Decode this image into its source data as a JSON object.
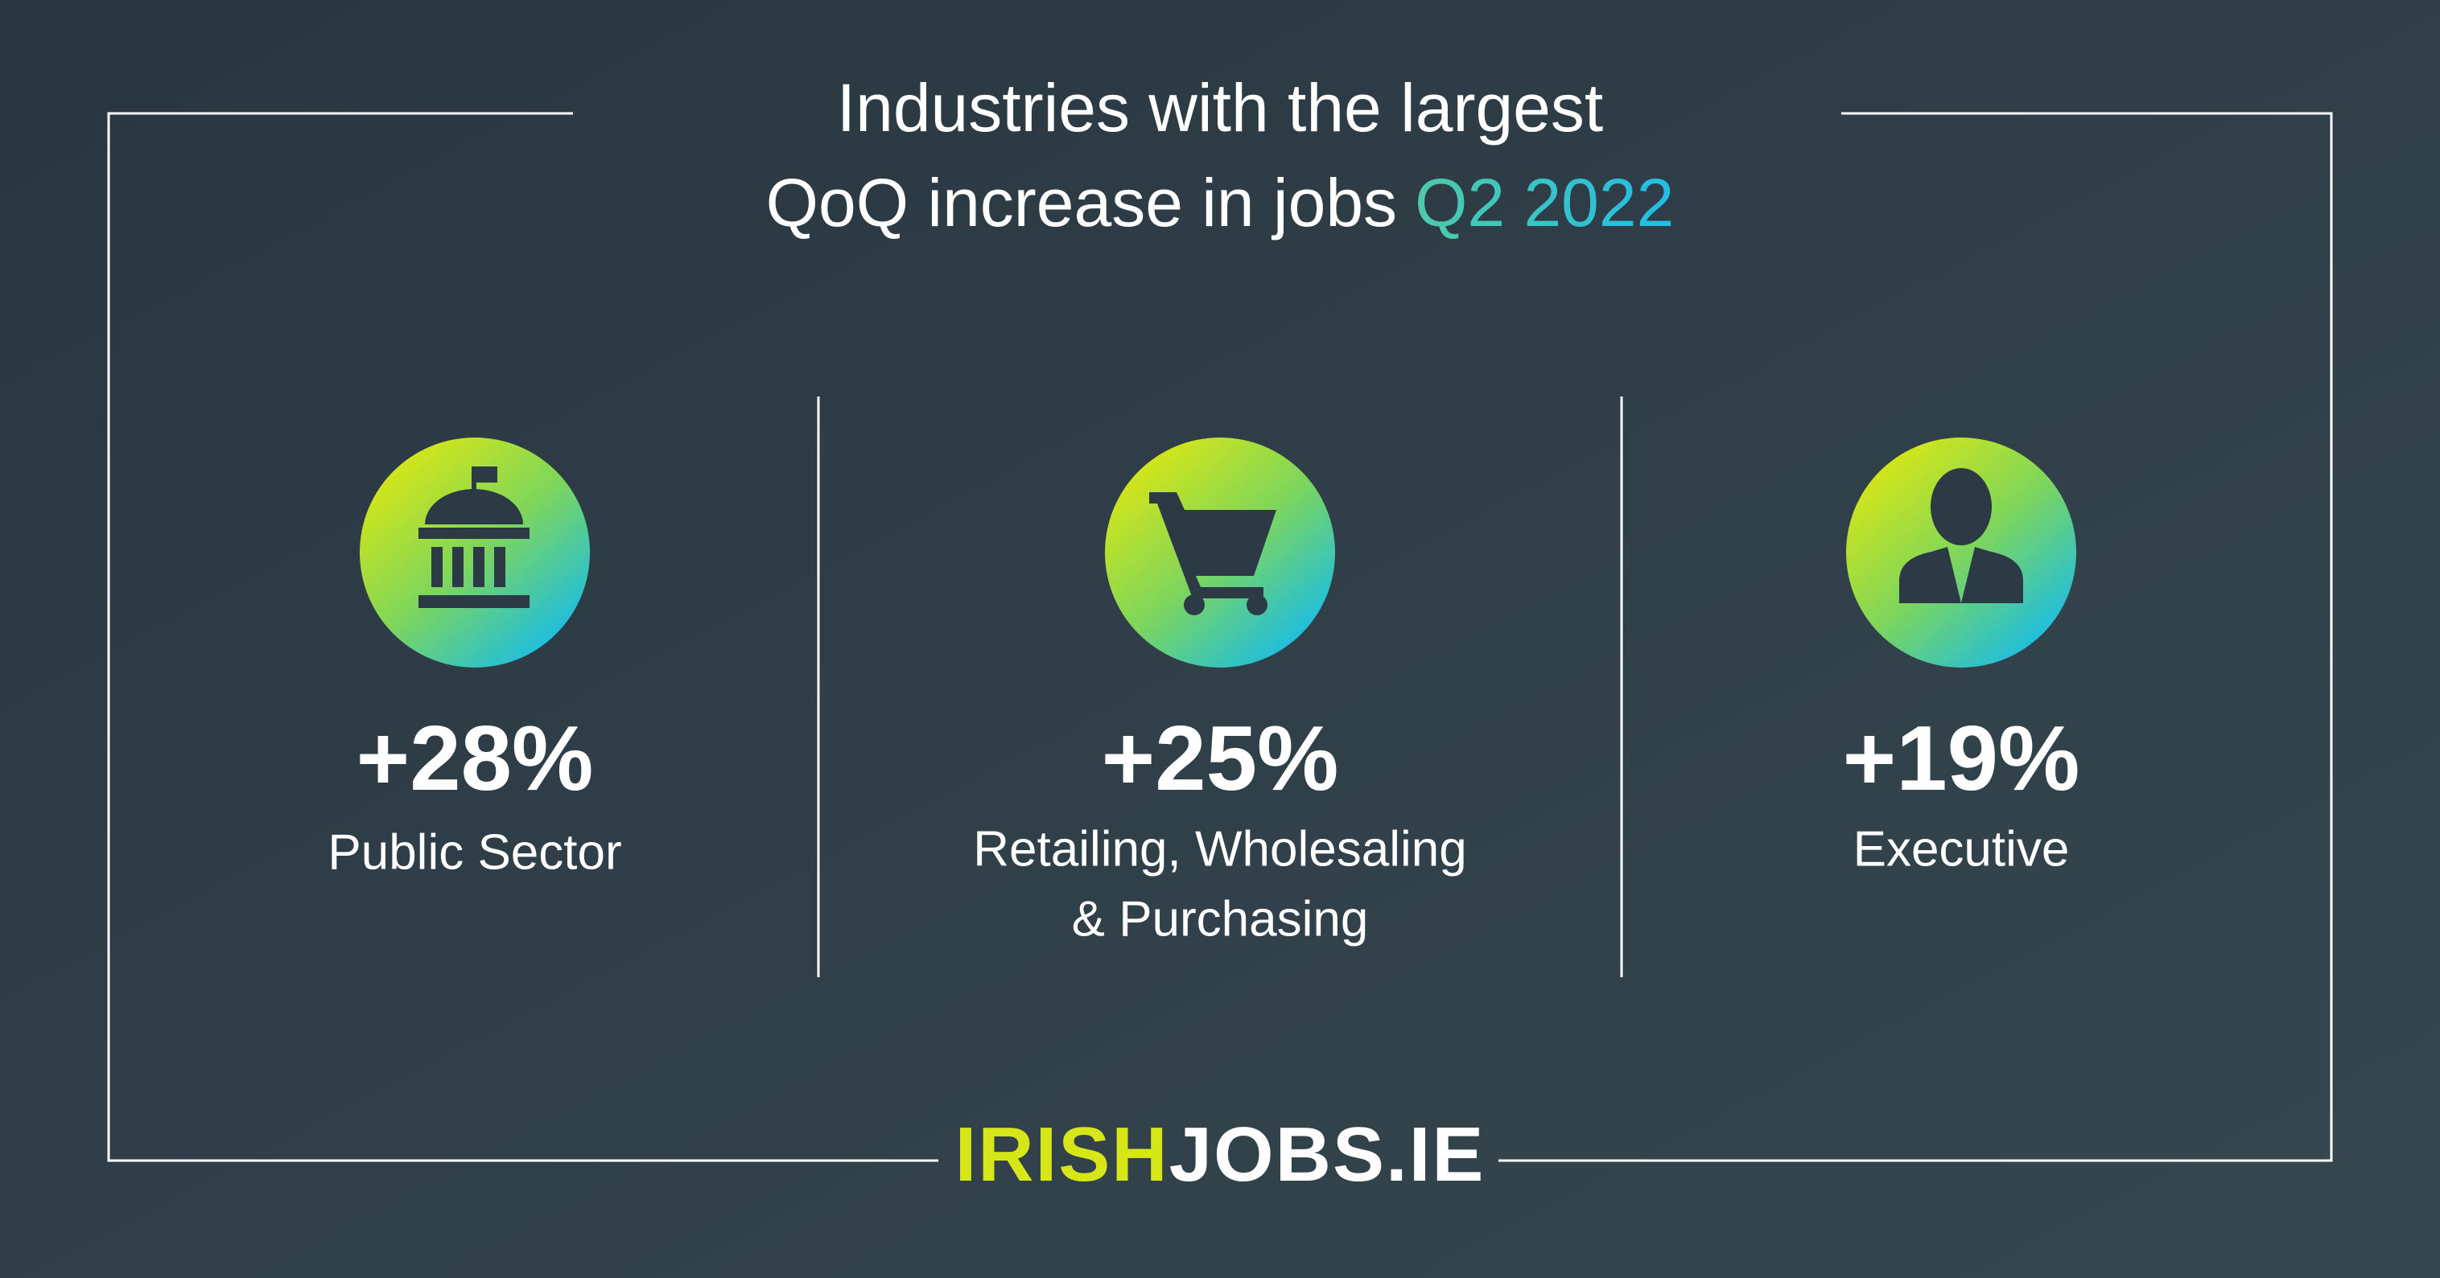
{
  "header": {
    "title_line1": "Industries with the largest",
    "title_line2": "QoQ increase in jobs",
    "title_highlight": "Q2 2022"
  },
  "stats": [
    {
      "value": "+28%",
      "label_lines": [
        "Public Sector"
      ]
    },
    {
      "value": "+25%",
      "label_lines": [
        "Retailing, Wholesaling",
        "& Purchasing"
      ]
    },
    {
      "value": "+19%",
      "label_lines": [
        "Executive"
      ]
    }
  ],
  "footer": {
    "logo_part1": "IRISH",
    "logo_part2": "JOBS.IE"
  }
}
